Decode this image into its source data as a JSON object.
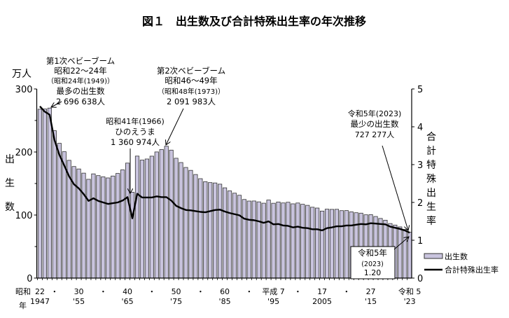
{
  "chart_data": {
    "type": "bar",
    "title": "図１　出生数及び合計特殊出生率の年次推移",
    "years": [
      1947,
      1948,
      1949,
      1950,
      1951,
      1952,
      1953,
      1954,
      1955,
      1956,
      1957,
      1958,
      1959,
      1960,
      1961,
      1962,
      1963,
      1964,
      1965,
      1966,
      1967,
      1968,
      1969,
      1970,
      1971,
      1972,
      1973,
      1974,
      1975,
      1976,
      1977,
      1978,
      1979,
      1980,
      1981,
      1982,
      1983,
      1984,
      1985,
      1986,
      1987,
      1988,
      1989,
      1990,
      1991,
      1992,
      1993,
      1994,
      1995,
      1996,
      1997,
      1998,
      1999,
      2000,
      2001,
      2002,
      2003,
      2004,
      2005,
      2006,
      2007,
      2008,
      2009,
      2010,
      2011,
      2012,
      2013,
      2014,
      2015,
      2016,
      2017,
      2018,
      2019,
      2020,
      2021,
      2022,
      2023
    ],
    "series": [
      {
        "name": "出生数",
        "type": "bar",
        "axis": "left",
        "unit": "万人",
        "values": [
          267.9,
          268.2,
          269.7,
          233.8,
          213.8,
          200.5,
          186.8,
          177.0,
          173.1,
          166.5,
          156.7,
          165.3,
          162.6,
          160.6,
          158.9,
          161.9,
          166.0,
          171.7,
          182.4,
          136.1,
          193.5,
          187.2,
          188.9,
          193.4,
          200.1,
          203.9,
          209.2,
          203.0,
          190.1,
          183.3,
          175.5,
          170.9,
          164.3,
          157.7,
          152.9,
          151.5,
          150.9,
          149.0,
          143.2,
          138.3,
          134.7,
          131.4,
          124.7,
          122.2,
          122.3,
          120.9,
          118.8,
          123.8,
          118.7,
          120.7,
          119.2,
          120.3,
          117.8,
          119.1,
          117.1,
          115.4,
          112.4,
          111.1,
          106.3,
          109.3,
          109.0,
          109.1,
          107.0,
          107.1,
          105.1,
          103.7,
          103.0,
          100.4,
          100.6,
          97.7,
          94.6,
          91.8,
          86.5,
          84.1,
          81.2,
          77.1,
          72.7
        ]
      },
      {
        "name": "合計特殊出生率",
        "type": "line",
        "axis": "right",
        "values": [
          4.54,
          4.4,
          4.32,
          3.65,
          3.26,
          2.98,
          2.69,
          2.48,
          2.37,
          2.22,
          2.04,
          2.11,
          2.04,
          2.0,
          1.96,
          1.98,
          2.0,
          2.05,
          2.14,
          1.58,
          2.23,
          2.13,
          2.13,
          2.13,
          2.16,
          2.14,
          2.14,
          2.05,
          1.91,
          1.85,
          1.8,
          1.79,
          1.77,
          1.75,
          1.74,
          1.77,
          1.8,
          1.81,
          1.76,
          1.72,
          1.69,
          1.66,
          1.57,
          1.54,
          1.53,
          1.5,
          1.46,
          1.5,
          1.42,
          1.43,
          1.39,
          1.38,
          1.34,
          1.36,
          1.33,
          1.32,
          1.29,
          1.29,
          1.26,
          1.32,
          1.34,
          1.37,
          1.37,
          1.39,
          1.39,
          1.41,
          1.43,
          1.42,
          1.45,
          1.44,
          1.43,
          1.42,
          1.36,
          1.33,
          1.3,
          1.26,
          1.2
        ]
      }
    ],
    "left_axis": {
      "label": "出生数",
      "unit": "万人",
      "ylim": [
        0,
        300
      ],
      "ticks": [
        "0",
        "100",
        "200",
        "300"
      ]
    },
    "right_axis": {
      "label": "合計特殊出生率",
      "ylim": [
        0,
        5
      ],
      "ticks": [
        "0",
        "1",
        "2",
        "3",
        "4",
        "5"
      ]
    },
    "x_ticks": [
      {
        "year": 1947,
        "era": "22",
        "western": "1947"
      },
      {
        "year": 1950,
        "era": "・",
        "western": ""
      },
      {
        "year": 1955,
        "era": "30",
        "western": "'55"
      },
      {
        "year": 1960,
        "era": "・",
        "western": ""
      },
      {
        "year": 1965,
        "era": "40",
        "western": "'65"
      },
      {
        "year": 1970,
        "era": "・",
        "western": ""
      },
      {
        "year": 1975,
        "era": "50",
        "western": "'75"
      },
      {
        "year": 1980,
        "era": "・",
        "western": ""
      },
      {
        "year": 1985,
        "era": "60",
        "western": "'85"
      },
      {
        "year": 1990,
        "era": "・",
        "western": ""
      },
      {
        "year": 1995,
        "era": "平成 7",
        "western": "'95"
      },
      {
        "year": 2000,
        "era": "・",
        "western": ""
      },
      {
        "year": 2005,
        "era": "17",
        "western": "2005"
      },
      {
        "year": 2010,
        "era": "・",
        "western": ""
      },
      {
        "year": 2015,
        "era": "27",
        "western": "'15"
      },
      {
        "year": 2023,
        "era": "令和 5",
        "western": "'23"
      }
    ],
    "x_era_prefix": "昭和",
    "x_unit": "年",
    "legend": {
      "placement": "bottom-right",
      "bar_label": "出生数",
      "line_label": "合計特殊出生率"
    },
    "annotations": {
      "boom1": [
        "第1次ベビーブーム",
        "昭和22～24年",
        "（昭和24年(1949)）",
        "最多の出生数",
        "2 696 638人"
      ],
      "boom2": [
        "第2次ベビーブーム",
        "昭和46～49年",
        "（昭和48年(1973)）",
        "2 091 983人"
      ],
      "hinoe": [
        "昭和41年(1966)",
        "ひのえうま",
        "1 360 974人"
      ],
      "min2023": [
        "令和5年(2023)",
        "最少の出生数",
        "727 277人"
      ],
      "tfr2023": [
        "令和5年",
        "(2023)",
        "1.20"
      ]
    }
  },
  "colors": {
    "bar_fill": "#c9c4de",
    "bar_stroke": "#333333",
    "line": "#000000"
  }
}
